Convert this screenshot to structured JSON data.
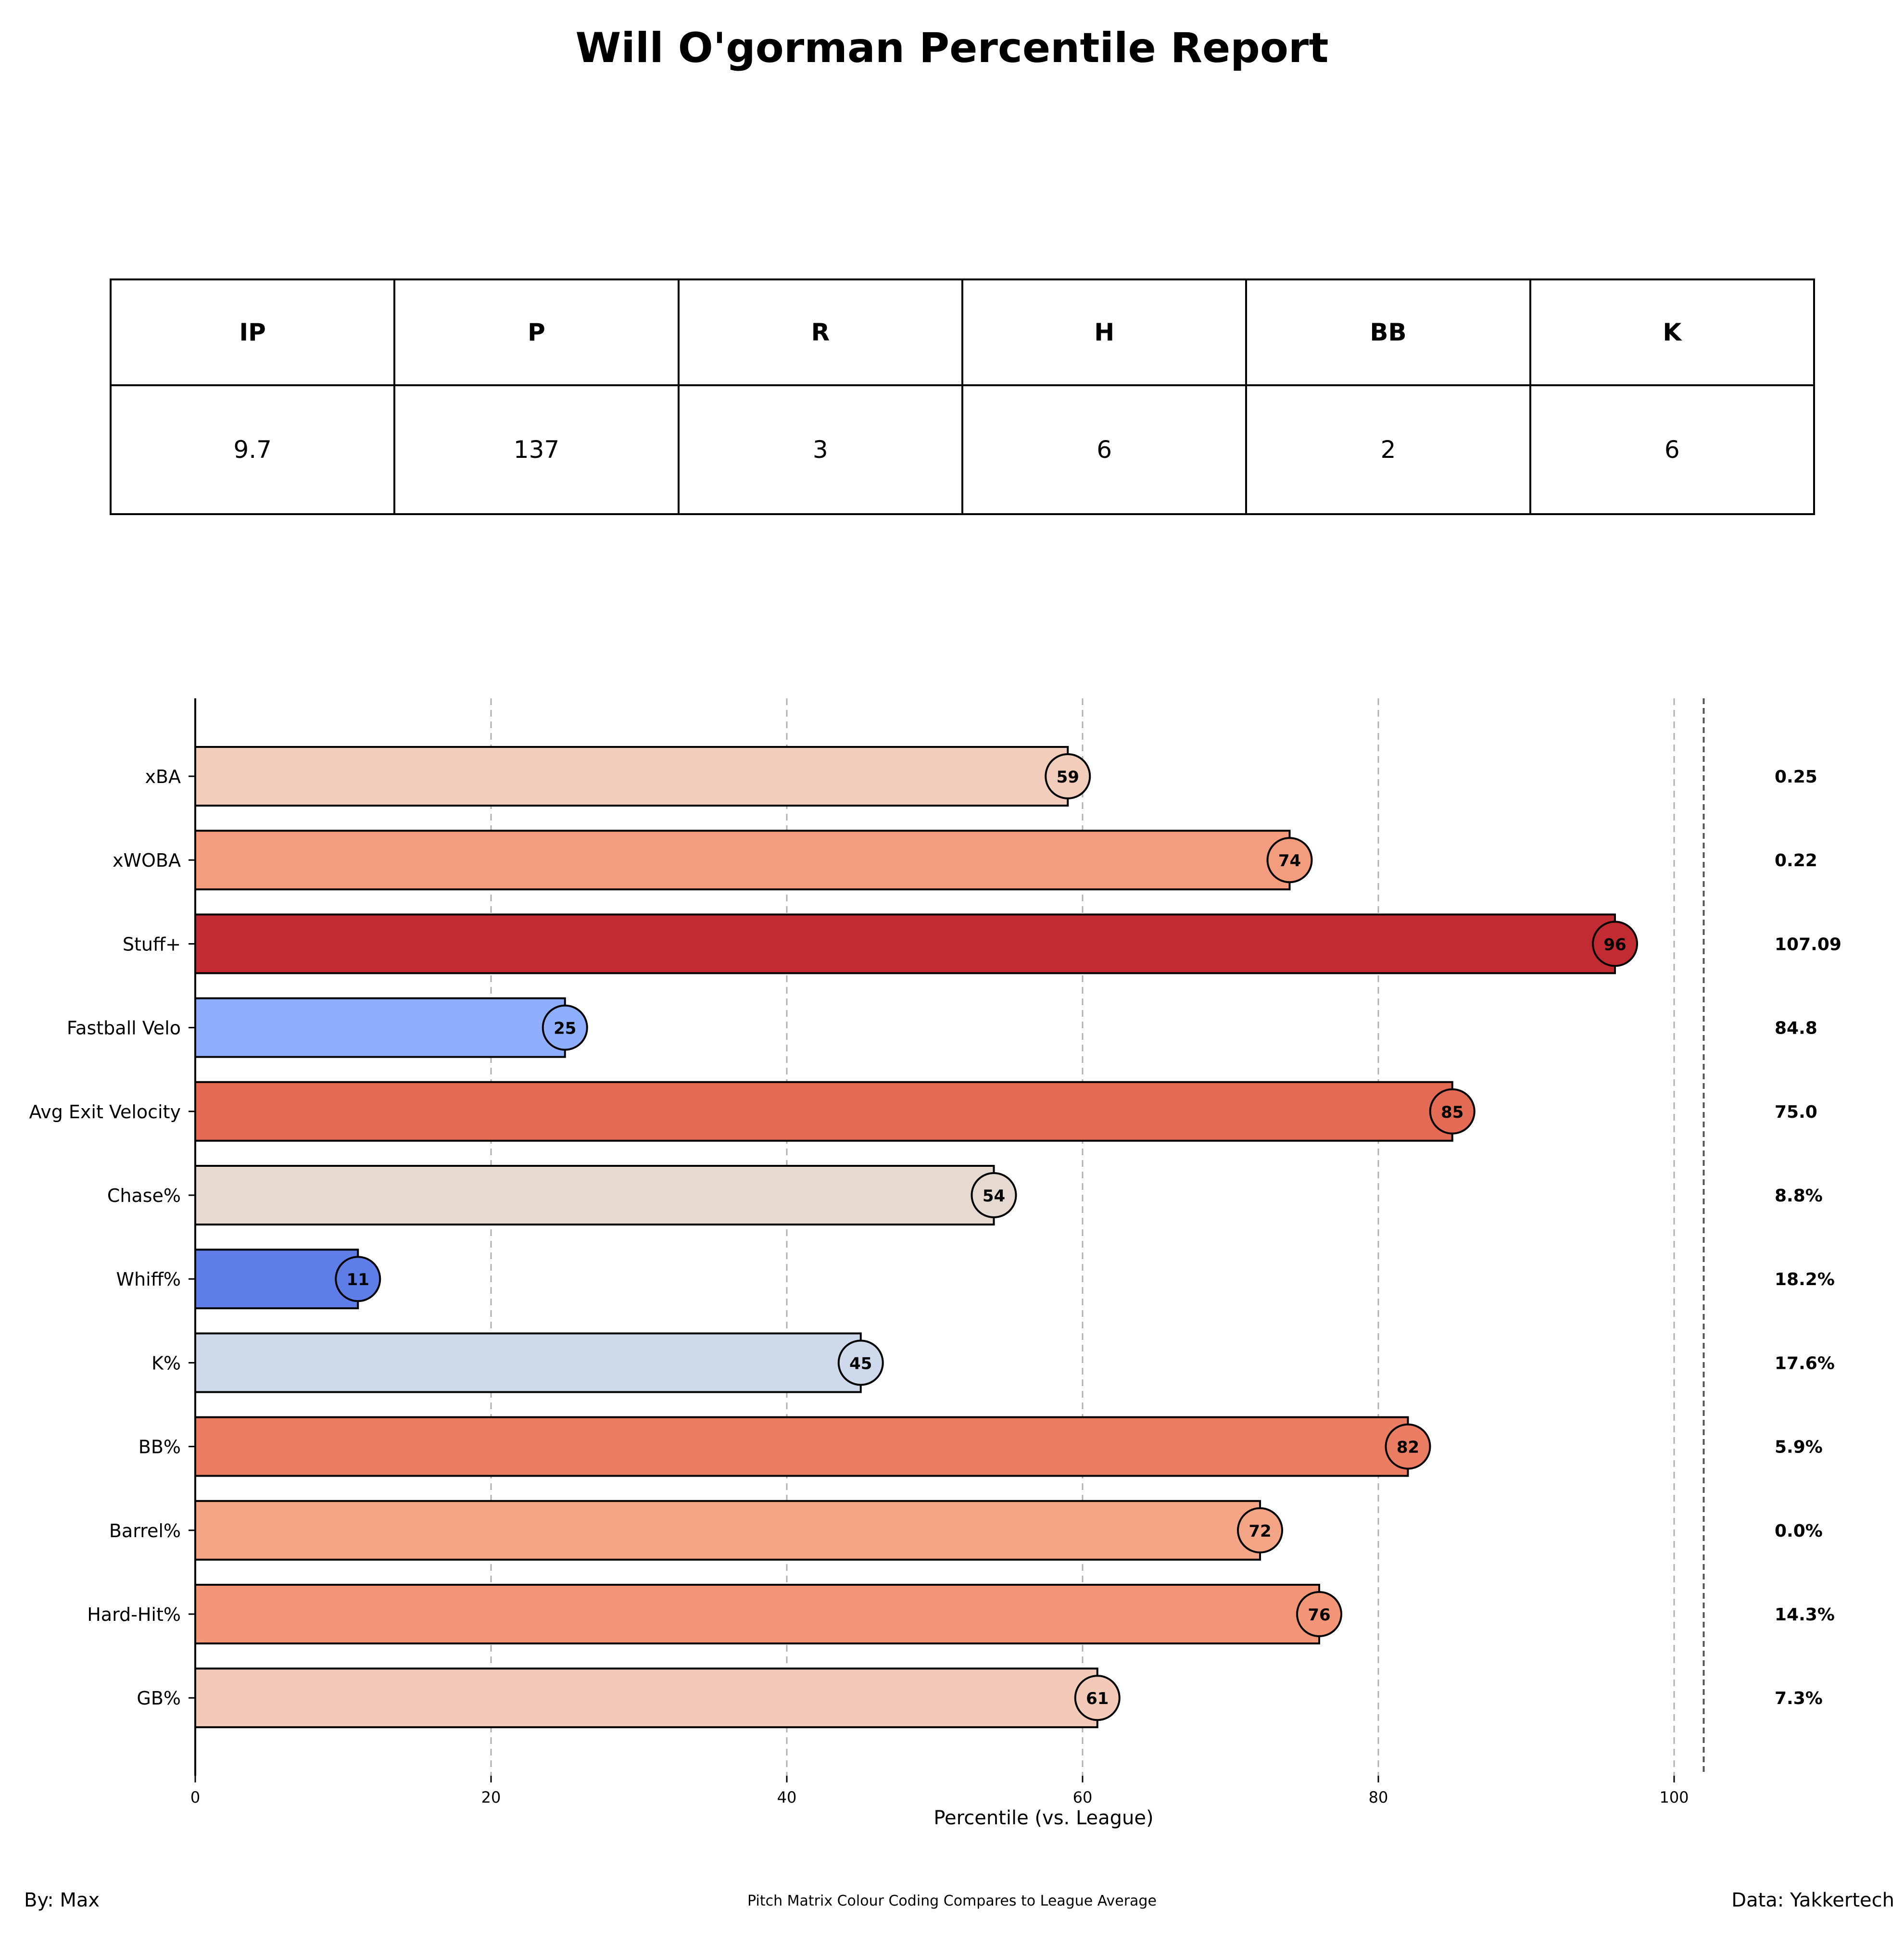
{
  "title": "Will O'gorman Percentile Report",
  "stats_table": {
    "headers": [
      "IP",
      "P",
      "R",
      "H",
      "BB",
      "K"
    ],
    "values": [
      "9.7",
      "137",
      "3",
      "6",
      "2",
      "6"
    ]
  },
  "chart_data": {
    "type": "bar",
    "orientation": "horizontal",
    "xlabel": "Percentile (vs. League)",
    "xlim": [
      0,
      102
    ],
    "xticks": [
      0,
      20,
      40,
      60,
      80,
      100
    ],
    "grid": "vertical dashed",
    "categories": [
      "xBA",
      "xWOBA",
      "Stuff+",
      "Fastball Velo",
      "Avg Exit Velocity",
      "Chase%",
      "Whiff%",
      "K%",
      "BB%",
      "Barrel%",
      "Hard-Hit%",
      "GB%"
    ],
    "values": [
      59,
      74,
      96,
      25,
      85,
      54,
      11,
      45,
      82,
      72,
      76,
      61
    ],
    "bar_labels": [
      "59",
      "74",
      "96",
      "25",
      "85",
      "54",
      "11",
      "45",
      "82",
      "72",
      "76",
      "61"
    ],
    "raw_values": [
      "0.25",
      "0.22",
      "107.09",
      "84.8",
      "75.0",
      "8.8%",
      "18.2%",
      "17.6%",
      "5.9%",
      "0.0%",
      "14.3%",
      "7.3%"
    ],
    "colors": [
      "#f2cdbb",
      "#f49c7e",
      "#c22b32",
      "#8daffd",
      "#e36b54",
      "#e6d9d0",
      "#5e7de7",
      "#cfd9ec",
      "#eb7d62",
      "#f4a586",
      "#f39677",
      "#f2cab7"
    ]
  },
  "footer": {
    "left": "By: Max",
    "center": "Pitch Matrix Colour Coding Compares to League Average",
    "right": "Data: Yakkertech"
  }
}
